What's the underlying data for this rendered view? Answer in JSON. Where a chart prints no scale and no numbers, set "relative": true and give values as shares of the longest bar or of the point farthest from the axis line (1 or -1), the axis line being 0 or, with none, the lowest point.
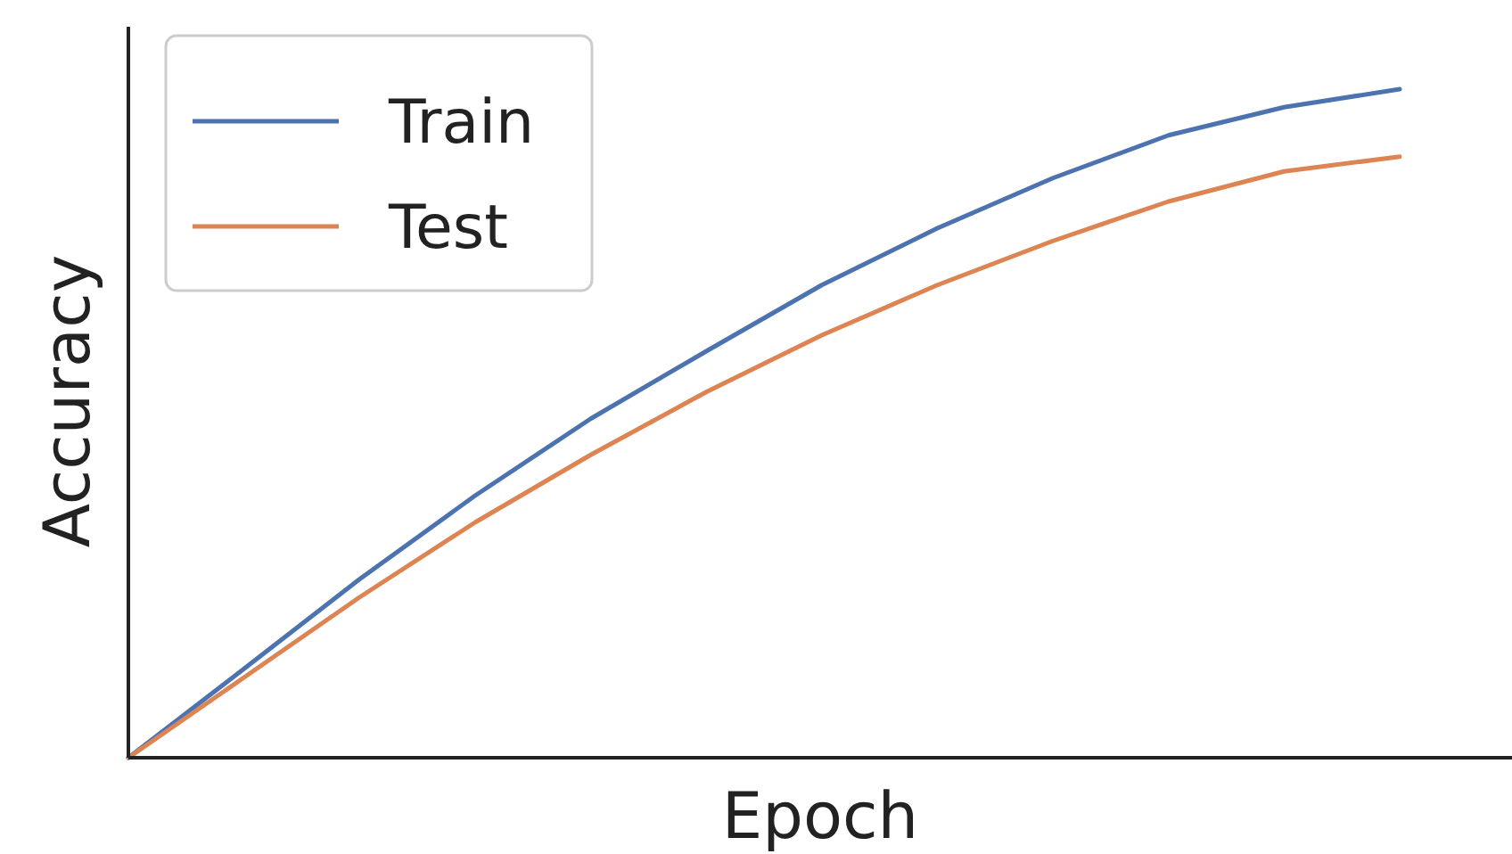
{
  "chart_data": {
    "type": "line",
    "xlabel": "Epoch",
    "ylabel": "Accuracy",
    "relative": true,
    "legend": "top left",
    "marker": "none",
    "line_style": "solid",
    "categories": [
      null,
      null,
      null,
      null,
      null,
      null,
      null,
      null,
      null,
      null,
      null,
      null
    ],
    "series": [
      {
        "name": "Train",
        "color": "#4c72b0",
        "values": [
          0,
          0.133,
          0.267,
          0.392,
          0.507,
          0.608,
          0.707,
          0.792,
          0.867,
          0.931,
          0.973,
          1
        ]
      },
      {
        "name": "Test",
        "color": "#dd8452",
        "values": [
          0,
          0.12,
          0.24,
          0.352,
          0.453,
          0.547,
          0.632,
          0.707,
          0.773,
          0.832,
          0.877,
          0.899
        ]
      }
    ]
  }
}
